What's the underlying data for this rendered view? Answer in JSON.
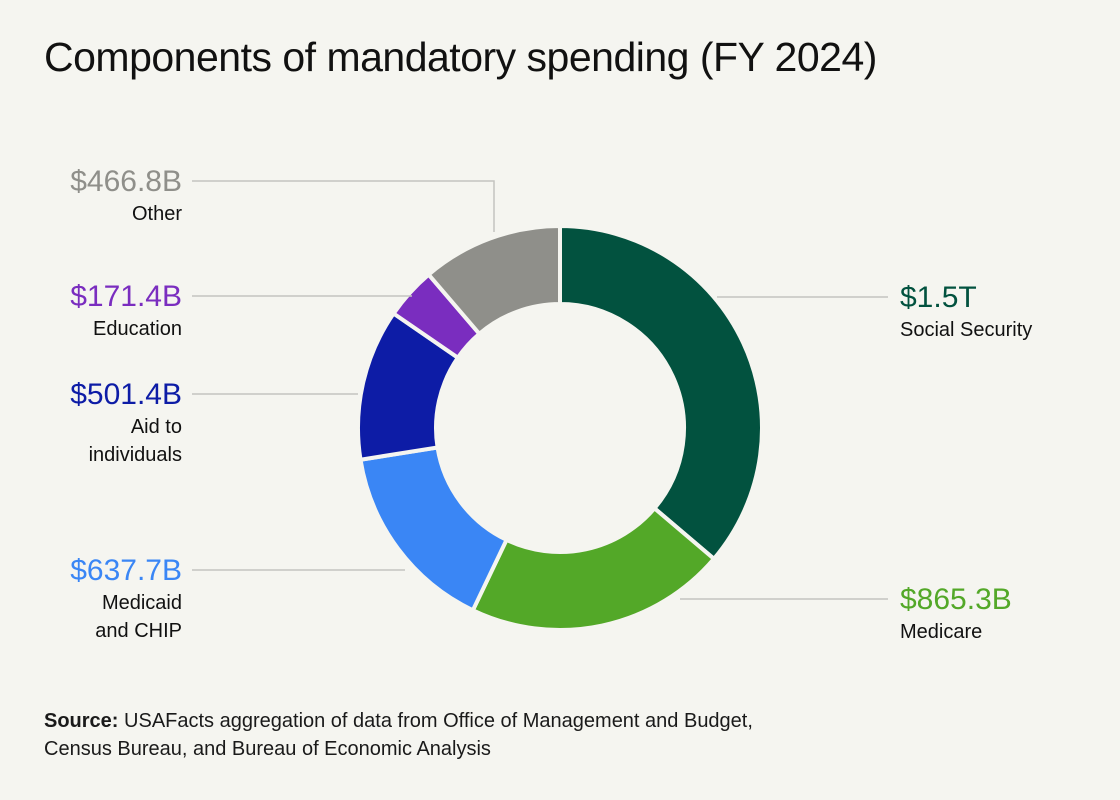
{
  "title": "Components of mandatory spending (FY 2024)",
  "source": {
    "label": "Source:",
    "line1": "USAFacts aggregation of data from Office of Management and Budget,",
    "line2": "Census Bureau, and Bureau of Economic Analysis"
  },
  "chart_data": {
    "type": "pie",
    "variant": "donut",
    "unit": "billion USD",
    "slices": [
      {
        "label": "Social Security",
        "value": 1500,
        "value_label": "$1.5T",
        "color": "#02523f"
      },
      {
        "label": "Medicare",
        "value": 865.3,
        "value_label": "$865.3B",
        "color": "#53a828"
      },
      {
        "label": "Medicaid and CHIP",
        "value": 637.7,
        "value_label": "$637.7B",
        "color": "#3a86f5"
      },
      {
        "label": "Aid to individuals",
        "value": 501.4,
        "value_label": "$501.4B",
        "color": "#0d1ca6"
      },
      {
        "label": "Education",
        "value": 171.4,
        "value_label": "$171.4B",
        "color": "#7a2dbf"
      },
      {
        "label": "Other",
        "value": 466.8,
        "value_label": "$466.8B",
        "color": "#8f8f8a"
      }
    ]
  }
}
